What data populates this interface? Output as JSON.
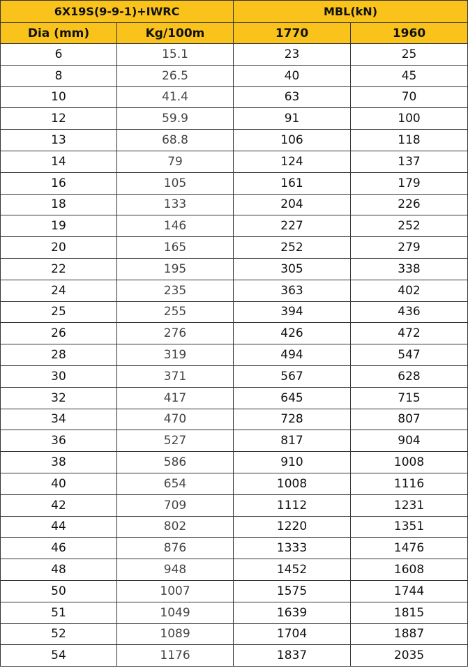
{
  "header": {
    "group_left": "6X19S(9-9-1)+IWRC",
    "group_right": "MBL(kN)",
    "columns": [
      "Dia (mm)",
      "Kg/100m",
      "1770",
      "1960"
    ]
  },
  "colors": {
    "header_bg": "#F9C31B"
  },
  "rows": [
    [
      "6",
      "15.1",
      "23",
      "25"
    ],
    [
      "8",
      "26.5",
      "40",
      "45"
    ],
    [
      "10",
      "41.4",
      "63",
      "70"
    ],
    [
      "12",
      "59.9",
      "91",
      "100"
    ],
    [
      "13",
      "68.8",
      "106",
      "118"
    ],
    [
      "14",
      "79",
      "124",
      "137"
    ],
    [
      "16",
      "105",
      "161",
      "179"
    ],
    [
      "18",
      "133",
      "204",
      "226"
    ],
    [
      "19",
      "146",
      "227",
      "252"
    ],
    [
      "20",
      "165",
      "252",
      "279"
    ],
    [
      "22",
      "195",
      "305",
      "338"
    ],
    [
      "24",
      "235",
      "363",
      "402"
    ],
    [
      "25",
      "255",
      "394",
      "436"
    ],
    [
      "26",
      "276",
      "426",
      "472"
    ],
    [
      "28",
      "319",
      "494",
      "547"
    ],
    [
      "30",
      "371",
      "567",
      "628"
    ],
    [
      "32",
      "417",
      "645",
      "715"
    ],
    [
      "34",
      "470",
      "728",
      "807"
    ],
    [
      "36",
      "527",
      "817",
      "904"
    ],
    [
      "38",
      "586",
      "910",
      "1008"
    ],
    [
      "40",
      "654",
      "1008",
      "1116"
    ],
    [
      "42",
      "709",
      "1112",
      "1231"
    ],
    [
      "44",
      "802",
      "1220",
      "1351"
    ],
    [
      "46",
      "876",
      "1333",
      "1476"
    ],
    [
      "48",
      "948",
      "1452",
      "1608"
    ],
    [
      "50",
      "1007",
      "1575",
      "1744"
    ],
    [
      "51",
      "1049",
      "1639",
      "1815"
    ],
    [
      "52",
      "1089",
      "1704",
      "1887"
    ],
    [
      "54",
      "1176",
      "1837",
      "2035"
    ]
  ]
}
